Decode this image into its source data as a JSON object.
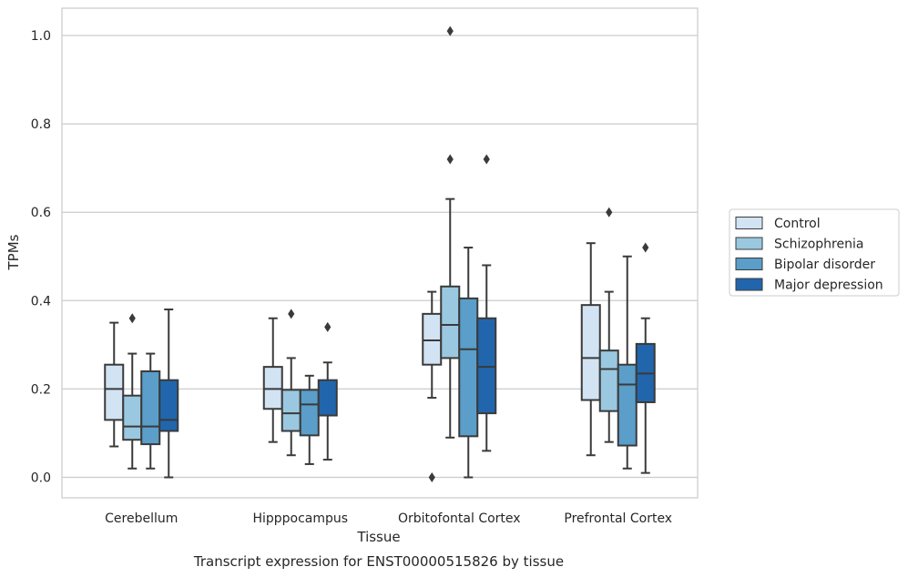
{
  "chart_data": {
    "type": "box",
    "title": "",
    "caption": "Transcript expression for ENST00000515826 by tissue",
    "xlabel": "Tissue",
    "ylabel": "TPMs",
    "ylim": [
      -0.05,
      1.06
    ],
    "yticks": [
      "0.0",
      "0.2",
      "0.4",
      "0.6",
      "0.8",
      "1.0"
    ],
    "grid": "horizontal",
    "legend_position": "right",
    "categories": [
      "Cerebellum",
      "Hipppocampus",
      "Orbitofontal Cortex",
      "Prefrontal Cortex"
    ],
    "series": [
      {
        "name": "Control",
        "color": "#d2e3f3",
        "boxes": [
          {
            "whislo": 0.07,
            "q1": 0.13,
            "med": 0.2,
            "q3": 0.255,
            "whishi": 0.35,
            "fliers": []
          },
          {
            "whislo": 0.08,
            "q1": 0.155,
            "med": 0.2,
            "q3": 0.25,
            "whishi": 0.36,
            "fliers": []
          },
          {
            "whislo": 0.18,
            "q1": 0.255,
            "med": 0.31,
            "q3": 0.37,
            "whishi": 0.42,
            "fliers": [
              0.0
            ]
          },
          {
            "whislo": 0.05,
            "q1": 0.175,
            "med": 0.27,
            "q3": 0.39,
            "whishi": 0.53,
            "fliers": []
          }
        ]
      },
      {
        "name": "Schizophrenia",
        "color": "#9ac8e0",
        "boxes": [
          {
            "whislo": 0.02,
            "q1": 0.085,
            "med": 0.115,
            "q3": 0.185,
            "whishi": 0.28,
            "fliers": [
              0.36
            ]
          },
          {
            "whislo": 0.05,
            "q1": 0.105,
            "med": 0.145,
            "q3": 0.198,
            "whishi": 0.27,
            "fliers": [
              0.37
            ]
          },
          {
            "whislo": 0.09,
            "q1": 0.27,
            "med": 0.345,
            "q3": 0.432,
            "whishi": 0.63,
            "fliers": [
              0.72,
              1.01
            ]
          },
          {
            "whislo": 0.08,
            "q1": 0.15,
            "med": 0.245,
            "q3": 0.287,
            "whishi": 0.42,
            "fliers": [
              0.6
            ]
          }
        ]
      },
      {
        "name": "Bipolar disorder",
        "color": "#5a9ec9",
        "boxes": [
          {
            "whislo": 0.02,
            "q1": 0.075,
            "med": 0.115,
            "q3": 0.24,
            "whishi": 0.28,
            "fliers": []
          },
          {
            "whislo": 0.03,
            "q1": 0.095,
            "med": 0.165,
            "q3": 0.198,
            "whishi": 0.23,
            "fliers": []
          },
          {
            "whislo": 0.0,
            "q1": 0.093,
            "med": 0.29,
            "q3": 0.405,
            "whishi": 0.52,
            "fliers": []
          },
          {
            "whislo": 0.02,
            "q1": 0.072,
            "med": 0.21,
            "q3": 0.255,
            "whishi": 0.5,
            "fliers": []
          }
        ]
      },
      {
        "name": "Major depression",
        "color": "#2166ac",
        "boxes": [
          {
            "whislo": 0.0,
            "q1": 0.105,
            "med": 0.13,
            "q3": 0.22,
            "whishi": 0.38,
            "fliers": []
          },
          {
            "whislo": 0.04,
            "q1": 0.14,
            "med": 0.14,
            "q3": 0.22,
            "whishi": 0.26,
            "fliers": [
              0.34
            ]
          },
          {
            "whislo": 0.06,
            "q1": 0.145,
            "med": 0.25,
            "q3": 0.36,
            "whishi": 0.48,
            "fliers": [
              0.72
            ]
          },
          {
            "whislo": 0.01,
            "q1": 0.17,
            "med": 0.235,
            "q3": 0.302,
            "whishi": 0.36,
            "fliers": [
              0.52
            ]
          }
        ]
      }
    ]
  }
}
